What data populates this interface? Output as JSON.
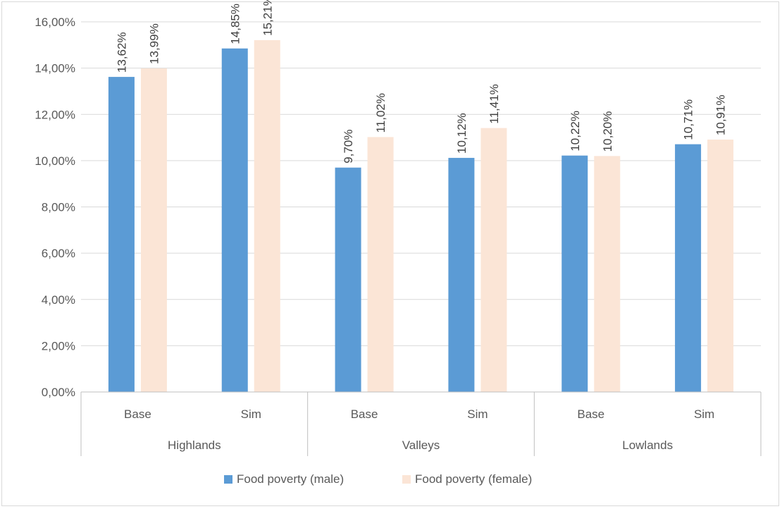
{
  "chart_data": {
    "type": "bar",
    "title": "",
    "xlabel": "",
    "ylabel": "",
    "ylim": [
      0,
      16
    ],
    "ytick_step": 2,
    "ytick_labels": [
      "0,00%",
      "2,00%",
      "4,00%",
      "6,00%",
      "8,00%",
      "10,00%",
      "12,00%",
      "14,00%",
      "16,00%"
    ],
    "grid": true,
    "legend_position": "bottom",
    "groups": [
      "Highlands",
      "Valleys",
      "Lowlands"
    ],
    "categories": [
      "Base",
      "Sim",
      "Base",
      "Sim",
      "Base",
      "Sim"
    ],
    "series": [
      {
        "name": "Food poverty (male)",
        "color": "#5b9bd5",
        "values": [
          13.62,
          14.85,
          9.7,
          10.12,
          10.22,
          10.71
        ],
        "labels": [
          "13,62%",
          "14,85%",
          "9,70%",
          "10,12%",
          "10,22%",
          "10,71%"
        ]
      },
      {
        "name": "Food poverty (female)",
        "color": "#fbe5d6",
        "values": [
          13.99,
          15.21,
          11.02,
          11.41,
          10.2,
          10.91
        ],
        "labels": [
          "13,99%",
          "15,21%",
          "11,02%",
          "11,41%",
          "10,20%",
          "10,91%"
        ]
      }
    ]
  },
  "colors": {
    "grid": "#d9d9d9",
    "axis": "#bfbfbf"
  }
}
